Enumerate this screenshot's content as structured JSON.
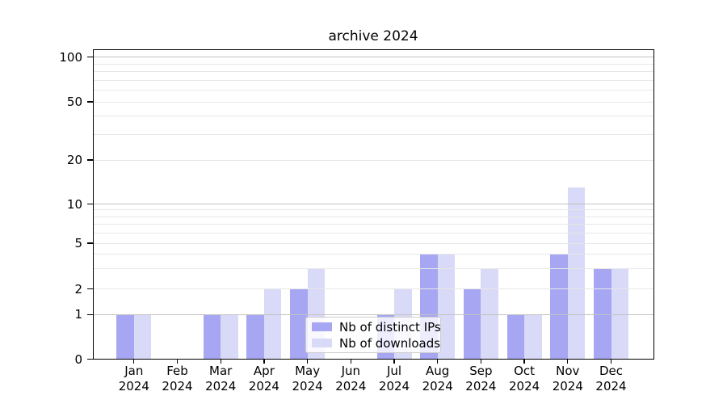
{
  "chart_data": {
    "type": "bar",
    "title": "archive 2024",
    "categories": [
      "Jan 2024",
      "Feb 2024",
      "Mar 2024",
      "Apr 2024",
      "May 2024",
      "Jun 2024",
      "Jul 2024",
      "Aug 2024",
      "Sep 2024",
      "Oct 2024",
      "Nov 2024",
      "Dec 2024"
    ],
    "series": [
      {
        "name": "Nb of distinct IPs",
        "color": "#a6a6f2",
        "values": [
          1,
          0,
          1,
          1,
          2,
          0,
          1,
          4,
          2,
          1,
          4,
          3
        ]
      },
      {
        "name": "Nb of downloads",
        "color": "#d9d9f8",
        "values": [
          1,
          0,
          1,
          2,
          3,
          0,
          2,
          4,
          3,
          1,
          13,
          3
        ]
      }
    ],
    "xlabel": "",
    "ylabel": "",
    "y_scale": "log-like above 1, linear 0-1",
    "ylim": [
      0,
      115
    ],
    "y_ticks": [
      0,
      1,
      2,
      5,
      10,
      20,
      50,
      100
    ],
    "y_major_gridlines": [
      1,
      10,
      100
    ],
    "y_minor_gridlines": [
      2,
      3,
      4,
      5,
      6,
      7,
      8,
      9,
      20,
      30,
      40,
      50,
      60,
      70,
      80,
      90
    ],
    "grid": true,
    "legend_position": "inside lower-center",
    "colors": {
      "bar_dark": "#a6a6f2",
      "bar_light": "#d9d9f8",
      "grid_minor": "#e7e7e7",
      "grid_major": "#c3c3c3",
      "spine": "#000000",
      "background": "#ffffff"
    }
  }
}
